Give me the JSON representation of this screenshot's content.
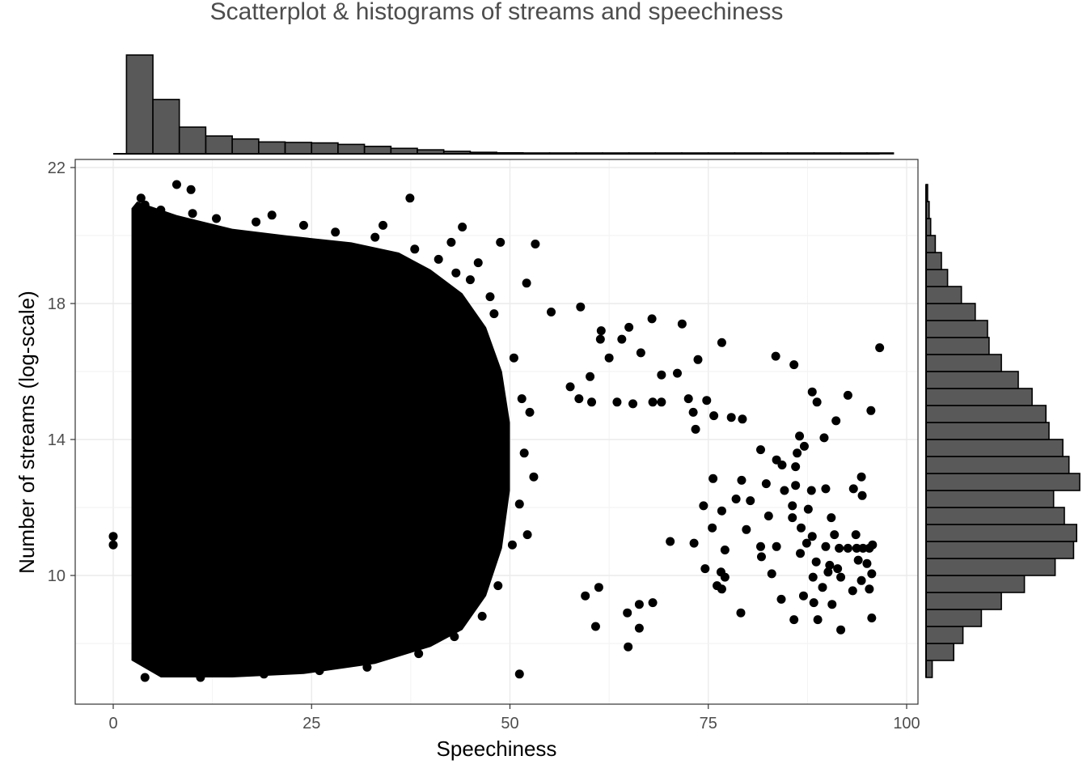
{
  "chart_data": {
    "type": "scatter",
    "title": "Scatterplot & histograms of streams and speechiness",
    "xlabel": "Speechiness",
    "ylabel": "Number of streams (log-scale)",
    "xlim": [
      -4.5,
      101
    ],
    "ylim": [
      6.2,
      22.2
    ],
    "x_ticks": [
      0,
      25,
      50,
      75,
      100
    ],
    "y_ticks": [
      10,
      14,
      18,
      22
    ],
    "grid": true,
    "legend": "none",
    "colors": {
      "points": "#000000",
      "bars": "#595959",
      "bar_edge": "#000000",
      "grid": "#ebebeb",
      "title": "#4d4d4d"
    },
    "scatter": {
      "note_dense_region": "dense cloud of points spanning speechiness ~2–50, log-streams ~7–21",
      "dense_cloud": {
        "x_range": [
          2.3,
          50
        ],
        "y_range": [
          7.0,
          20.9
        ]
      },
      "points": [
        [
          0,
          11.15
        ],
        [
          0,
          10.9
        ],
        [
          8,
          21.5
        ],
        [
          9.8,
          21.35
        ],
        [
          3.5,
          21.1
        ],
        [
          37.4,
          21.1
        ],
        [
          44,
          20.25
        ],
        [
          42.6,
          19.8
        ],
        [
          48.8,
          19.8
        ],
        [
          53.2,
          19.75
        ],
        [
          43.2,
          18.9
        ],
        [
          52.1,
          18.6
        ],
        [
          47.5,
          18.2
        ],
        [
          58.9,
          17.9
        ],
        [
          55.2,
          17.75
        ],
        [
          65,
          17.3
        ],
        [
          61.5,
          17.2
        ],
        [
          67.9,
          17.55
        ],
        [
          71.7,
          17.4
        ],
        [
          61.4,
          16.95
        ],
        [
          64.1,
          16.95
        ],
        [
          66.5,
          16.55
        ],
        [
          73.7,
          16.35
        ],
        [
          76.7,
          16.85
        ],
        [
          62.5,
          16.4
        ],
        [
          83.5,
          16.45
        ],
        [
          85.8,
          16.2
        ],
        [
          96.6,
          16.7
        ],
        [
          60.1,
          15.85
        ],
        [
          71.1,
          15.95
        ],
        [
          69.1,
          15.9
        ],
        [
          57.6,
          15.55
        ],
        [
          58.7,
          15.2
        ],
        [
          60.3,
          15.1
        ],
        [
          63.5,
          15.1
        ],
        [
          65.5,
          15.05
        ],
        [
          68,
          15.1
        ],
        [
          69.1,
          15.1
        ],
        [
          72.5,
          15.2
        ],
        [
          74.8,
          15.15
        ],
        [
          88.1,
          15.4
        ],
        [
          88.7,
          15.1
        ],
        [
          92.6,
          15.3
        ],
        [
          95.5,
          14.85
        ],
        [
          73.1,
          14.8
        ],
        [
          75.7,
          14.7
        ],
        [
          77.9,
          14.65
        ],
        [
          79.3,
          14.6
        ],
        [
          91.1,
          14.55
        ],
        [
          73.4,
          14.3
        ],
        [
          86.5,
          14.1
        ],
        [
          89.6,
          14.05
        ],
        [
          87.1,
          13.8
        ],
        [
          86.2,
          13.6
        ],
        [
          81.6,
          13.7
        ],
        [
          83.6,
          13.4
        ],
        [
          84.3,
          13.25
        ],
        [
          86,
          13.2
        ],
        [
          75.6,
          12.85
        ],
        [
          79.2,
          12.8
        ],
        [
          82.3,
          12.7
        ],
        [
          94.3,
          12.9
        ],
        [
          86,
          12.65
        ],
        [
          88,
          12.5
        ],
        [
          78.5,
          12.25
        ],
        [
          80.3,
          12.2
        ],
        [
          84.6,
          12.5
        ],
        [
          89.8,
          12.55
        ],
        [
          93.3,
          12.55
        ],
        [
          94.4,
          12.35
        ],
        [
          74.4,
          12.05
        ],
        [
          76.7,
          11.9
        ],
        [
          85.6,
          12.05
        ],
        [
          87.6,
          11.95
        ],
        [
          82.6,
          11.75
        ],
        [
          85.6,
          11.7
        ],
        [
          90.5,
          11.7
        ],
        [
          75.5,
          11.4
        ],
        [
          79.8,
          11.35
        ],
        [
          86.7,
          11.4
        ],
        [
          88.1,
          11.15
        ],
        [
          90.9,
          11.2
        ],
        [
          93.6,
          11.2
        ],
        [
          70.2,
          11.0
        ],
        [
          73.2,
          10.95
        ],
        [
          77.1,
          10.75
        ],
        [
          81.6,
          10.85
        ],
        [
          83.6,
          10.85
        ],
        [
          87.4,
          10.95
        ],
        [
          89.8,
          10.85
        ],
        [
          91.5,
          10.8
        ],
        [
          92.6,
          10.8
        ],
        [
          93.7,
          10.8
        ],
        [
          94.5,
          10.8
        ],
        [
          95.3,
          10.8
        ],
        [
          95.7,
          10.9
        ],
        [
          81.7,
          10.55
        ],
        [
          86.6,
          10.65
        ],
        [
          88.6,
          10.4
        ],
        [
          90.3,
          10.3
        ],
        [
          91.3,
          10.2
        ],
        [
          93.9,
          10.45
        ],
        [
          95,
          10.35
        ],
        [
          74.6,
          10.2
        ],
        [
          76.6,
          10.1
        ],
        [
          77.1,
          9.95
        ],
        [
          83,
          10.05
        ],
        [
          88.2,
          9.95
        ],
        [
          90.1,
          10.1
        ],
        [
          91.7,
          9.95
        ],
        [
          94.3,
          9.85
        ],
        [
          95.6,
          10.05
        ],
        [
          76.1,
          9.7
        ],
        [
          76.7,
          9.6
        ],
        [
          87,
          9.4
        ],
        [
          89.4,
          9.65
        ],
        [
          93.2,
          9.55
        ],
        [
          95.3,
          9.6
        ],
        [
          84.2,
          9.3
        ],
        [
          88.3,
          9.2
        ],
        [
          90.6,
          9.15
        ],
        [
          66.3,
          9.15
        ],
        [
          68,
          9.2
        ],
        [
          64.8,
          8.9
        ],
        [
          79.1,
          8.9
        ],
        [
          85.8,
          8.7
        ],
        [
          88.8,
          8.7
        ],
        [
          95.6,
          8.75
        ],
        [
          60.8,
          8.5
        ],
        [
          66.3,
          8.45
        ],
        [
          91.7,
          8.4
        ],
        [
          64.9,
          7.9
        ],
        [
          51.2,
          7.1
        ],
        [
          59.5,
          9.4
        ],
        [
          61.2,
          9.65
        ]
      ]
    },
    "top_histogram": {
      "variable": "Speechiness",
      "bin_width": 3.33,
      "bin_starts": [
        1.67,
        5.0,
        8.33,
        11.67,
        15.0,
        18.33,
        21.67,
        25.0,
        28.33,
        31.67,
        35.0,
        38.33,
        41.67,
        45.0,
        48.33,
        51.67,
        55.0,
        58.33,
        61.67,
        65.0,
        68.33,
        71.67,
        75.0,
        78.33,
        81.67,
        85.0,
        88.33,
        91.67,
        95.0
      ],
      "counts": [
        1000,
        550,
        270,
        180,
        150,
        120,
        115,
        110,
        95,
        75,
        55,
        40,
        25,
        15,
        10,
        6,
        4,
        3,
        2,
        2,
        2,
        2,
        1,
        1,
        1,
        1,
        1,
        1,
        1
      ]
    },
    "right_histogram": {
      "variable": "Number of streams (log-scale)",
      "bin_width": 0.5,
      "bin_starts": [
        7.0,
        7.5,
        8.0,
        8.5,
        9.0,
        9.5,
        10.0,
        10.5,
        11.0,
        11.5,
        12.0,
        12.5,
        13.0,
        13.5,
        14.0,
        14.5,
        15.0,
        15.5,
        16.0,
        16.5,
        17.0,
        17.5,
        18.0,
        18.5,
        19.0,
        19.5,
        20.0,
        20.5,
        21.0
      ],
      "counts": [
        4,
        18,
        24,
        36,
        49,
        64,
        84,
        96,
        98,
        90,
        83,
        100,
        93,
        89,
        80,
        78,
        69,
        60,
        49,
        41,
        40,
        32,
        23,
        14,
        10,
        6,
        3,
        2,
        1
      ]
    }
  }
}
